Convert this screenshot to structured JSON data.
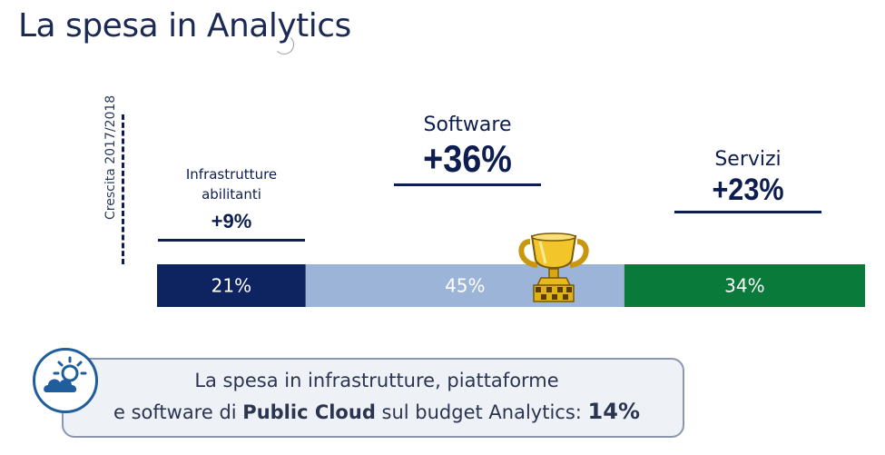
{
  "title": "La spesa in Analytics",
  "axis_label": "Crescita 2017/2018",
  "categories": [
    {
      "name": "Infrastrutture abilitanti",
      "growth": "+9%"
    },
    {
      "name": "Software",
      "growth": "+36%"
    },
    {
      "name": "Servizi",
      "growth": "+23%"
    }
  ],
  "chart_data": {
    "type": "bar",
    "orientation": "horizontal-stacked",
    "categories": [
      "Infrastrutture abilitanti",
      "Software",
      "Servizi"
    ],
    "values": [
      21,
      45,
      34
    ],
    "labels": [
      "21%",
      "45%",
      "34%"
    ],
    "growth": [
      "+9%",
      "+36%",
      "+23%"
    ],
    "colors": [
      "#0d2461",
      "#9bb4d8",
      "#0a7a3b"
    ],
    "ylabel": "Crescita 2017/2018"
  },
  "callout": {
    "line1": "La spesa in infrastrutture, piattaforme",
    "line2_prefix": "e software di ",
    "line2_bold": "Public Cloud",
    "line2_suffix": " sul budget Analytics: ",
    "value": "14%"
  },
  "icons": {
    "trophy": "trophy-icon",
    "callout": "cloud-sun-icon"
  },
  "colors": {
    "title": "#1b2a55",
    "accent_navy": "#0d1d4f",
    "callout_border": "#8c97ad"
  }
}
